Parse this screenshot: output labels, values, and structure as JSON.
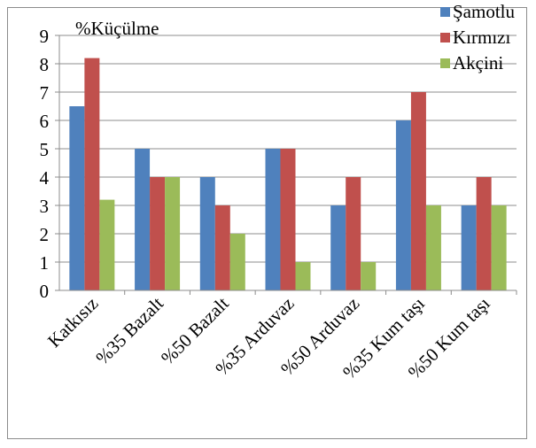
{
  "chart_data": {
    "type": "bar",
    "ylabel": "%Küçülme",
    "ylim": [
      0,
      9
    ],
    "yticks": [
      0,
      1,
      2,
      3,
      4,
      5,
      6,
      7,
      8,
      9
    ],
    "grid": true,
    "legend_position": "top-right",
    "categories": [
      "Katkısız",
      "%35 Bazalt",
      "%50 Bazalt",
      "%35 Arduvaz",
      "%50 Arduvaz",
      "%35 Kum taşı",
      "%50 Kum taşı"
    ],
    "series": [
      {
        "name": "Şamotlu",
        "color": "#4f81bd",
        "values": [
          6.5,
          5,
          4,
          5,
          3,
          6,
          3
        ]
      },
      {
        "name": "Kırmızı",
        "color": "#c0504d",
        "values": [
          8.2,
          4,
          3,
          5,
          4,
          7,
          4
        ]
      },
      {
        "name": "Akçini",
        "color": "#9bbb59",
        "values": [
          3.2,
          4,
          2,
          1,
          1,
          3,
          3
        ]
      }
    ]
  }
}
